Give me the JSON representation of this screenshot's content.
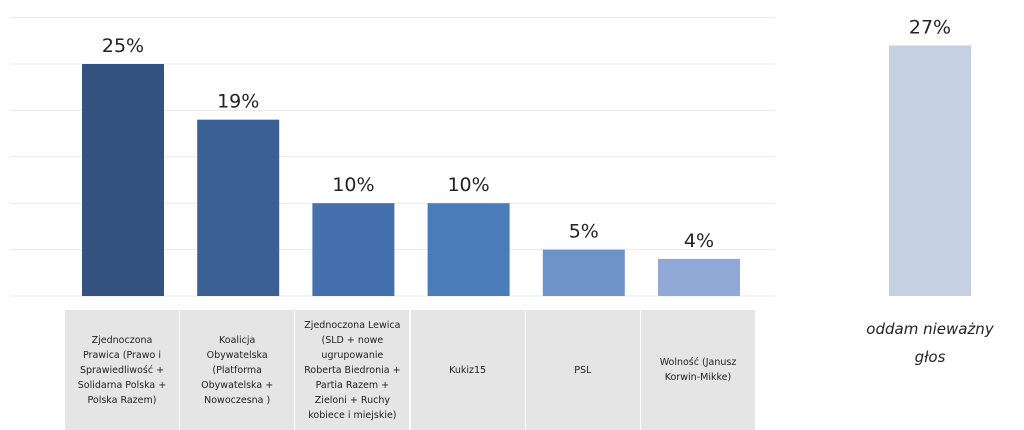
{
  "chart_data": {
    "type": "bar",
    "categories": [
      "Zjednoczona Prawica (Prawo i Sprawiedliwość + Solidarna Polska + Polska Razem)",
      "Koalicja Obywatelska (Platforma Obywatelska + Nowoczesna )",
      "Zjednoczona Lewica (SLD + nowe ugrupowanie Roberta Biedronia + Partia Razem + Zieloni + Ruchy kobiece i miejskie)",
      "Kukiz15",
      "PSL",
      "Wolność (Janusz Korwin-Mikke)",
      "oddam nieważny głos"
    ],
    "values": [
      25,
      19,
      10,
      10,
      5,
      4,
      27
    ],
    "value_labels": [
      "25%",
      "19%",
      "10%",
      "10%",
      "5%",
      "4%",
      "27%"
    ],
    "colors": [
      "#34527f",
      "#3b6096",
      "#4470ad",
      "#4a7cb9",
      "#6e93c8",
      "#90a9d6",
      "#c5d0e3"
    ],
    "ylim": [
      0,
      30
    ],
    "yticks": [
      0,
      5,
      10,
      15,
      20,
      25,
      30
    ],
    "grid": true
  }
}
